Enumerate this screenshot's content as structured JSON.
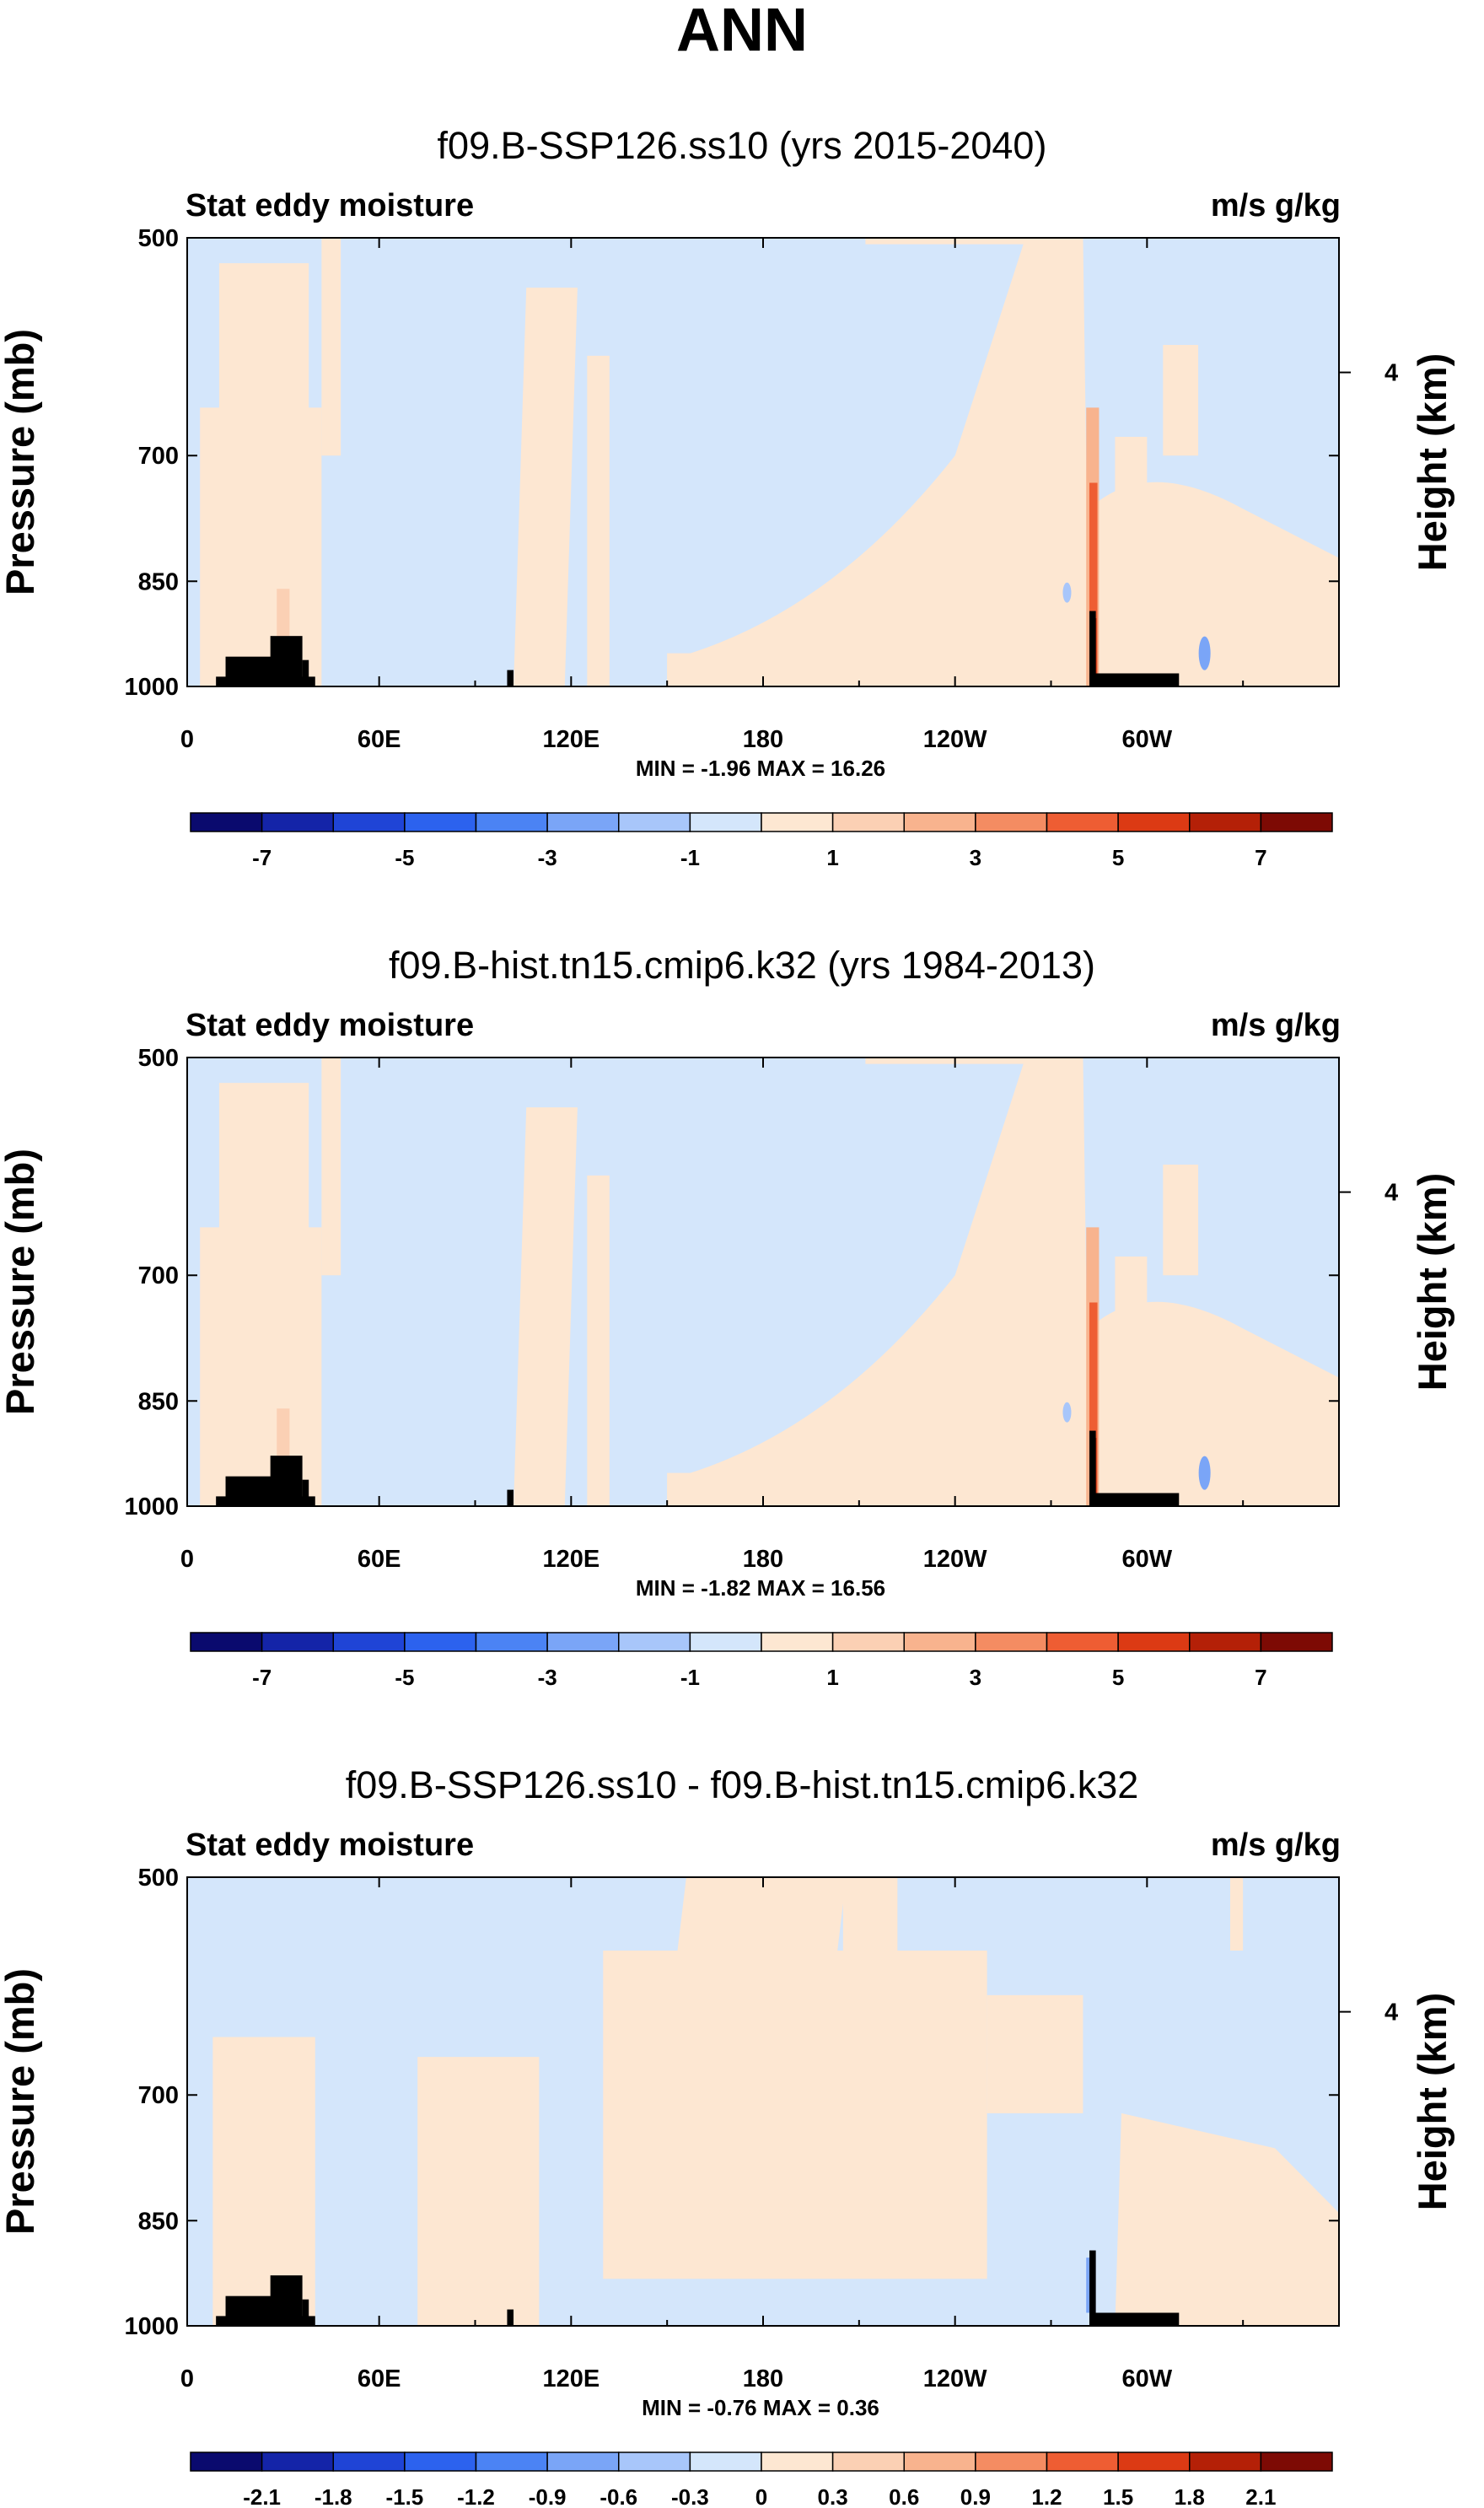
{
  "figure": {
    "title": "ANN"
  },
  "colors": {
    "levels": [
      "#0a0a6e",
      "#1424a8",
      "#1f44d6",
      "#2c62ee",
      "#4b83f4",
      "#7aa5f7",
      "#a8c6fa",
      "#d4e6fb",
      "#fde7d2",
      "#fbd0b4",
      "#f8b38e",
      "#f48c62",
      "#ee5d33",
      "#dc3a14",
      "#b42007",
      "#7d0a04"
    ],
    "background_pos": "#fde7d2",
    "background_neg": "#d4e6fb",
    "mid_pos": "#f8b38e",
    "strong_pos": "#ee5d33",
    "max_pos": "#b42007",
    "mid_neg": "#7aa5f7",
    "topography": "#000000"
  },
  "chart_data": [
    {
      "type": "heatmap",
      "title": "f09.B-SSP126.ss10 (yrs 2015-2040)",
      "left_label": "Stat eddy moisture",
      "right_label": "m/s g/kg",
      "ylabel": "Pressure (mb)",
      "y2label": "Height (km)",
      "y_ticks": [
        "500",
        "700",
        "850",
        "1000"
      ],
      "y_tick_values": [
        500,
        700,
        850,
        1000
      ],
      "y2_tick": "4",
      "x_ticks": [
        "0",
        "60E",
        "120E",
        "180",
        "120W",
        "60W"
      ],
      "x_tick_values": [
        0,
        60,
        120,
        180,
        240,
        300
      ],
      "xlim": [
        0,
        360
      ],
      "ylim": [
        1000,
        500
      ],
      "min": -1.96,
      "max": 16.26,
      "minmax_text": "MIN = -1.96  MAX = 16.26",
      "colorbar_labels": [
        "-7",
        "-5",
        "-3",
        "-1",
        "1",
        "3",
        "5",
        "7"
      ],
      "contour_levels": [
        -7,
        -6,
        -5,
        -4,
        -3,
        -2,
        -1,
        0,
        1,
        2,
        3,
        4,
        5,
        6,
        7
      ]
    },
    {
      "type": "heatmap",
      "title": "f09.B-hist.tn15.cmip6.k32 (yrs 1984-2013)",
      "left_label": "Stat eddy moisture",
      "right_label": "m/s g/kg",
      "ylabel": "Pressure (mb)",
      "y2label": "Height (km)",
      "y_ticks": [
        "500",
        "700",
        "850",
        "1000"
      ],
      "y_tick_values": [
        500,
        700,
        850,
        1000
      ],
      "y2_tick": "4",
      "x_ticks": [
        "0",
        "60E",
        "120E",
        "180",
        "120W",
        "60W"
      ],
      "x_tick_values": [
        0,
        60,
        120,
        180,
        240,
        300
      ],
      "xlim": [
        0,
        360
      ],
      "ylim": [
        1000,
        500
      ],
      "min": -1.82,
      "max": 16.56,
      "minmax_text": "MIN = -1.82  MAX = 16.56",
      "colorbar_labels": [
        "-7",
        "-5",
        "-3",
        "-1",
        "1",
        "3",
        "5",
        "7"
      ],
      "contour_levels": [
        -7,
        -6,
        -5,
        -4,
        -3,
        -2,
        -1,
        0,
        1,
        2,
        3,
        4,
        5,
        6,
        7
      ]
    },
    {
      "type": "heatmap",
      "title": "f09.B-SSP126.ss10 - f09.B-hist.tn15.cmip6.k32",
      "left_label": "Stat eddy moisture",
      "right_label": "m/s g/kg",
      "ylabel": "Pressure (mb)",
      "y2label": "Height (km)",
      "y_ticks": [
        "500",
        "700",
        "850",
        "1000"
      ],
      "y_tick_values": [
        500,
        700,
        850,
        1000
      ],
      "y2_tick": "4",
      "x_ticks": [
        "0",
        "60E",
        "120E",
        "180",
        "120W",
        "60W"
      ],
      "x_tick_values": [
        0,
        60,
        120,
        180,
        240,
        300
      ],
      "xlim": [
        0,
        360
      ],
      "ylim": [
        1000,
        500
      ],
      "min": -0.76,
      "max": 0.36,
      "minmax_text": "MIN = -0.76  MAX =  0.36",
      "colorbar_labels": [
        "-2.1",
        "-1.8",
        "-1.5",
        "-1.2",
        "-0.9",
        "-0.6",
        "-0.3",
        "0",
        "0.3",
        "0.6",
        "0.9",
        "1.2",
        "1.5",
        "1.8",
        "2.1"
      ],
      "contour_levels": [
        -2.1,
        -1.8,
        -1.5,
        -1.2,
        -0.9,
        -0.6,
        -0.3,
        0,
        0.3,
        0.6,
        0.9,
        1.2,
        1.5,
        1.8,
        2.1
      ]
    }
  ]
}
